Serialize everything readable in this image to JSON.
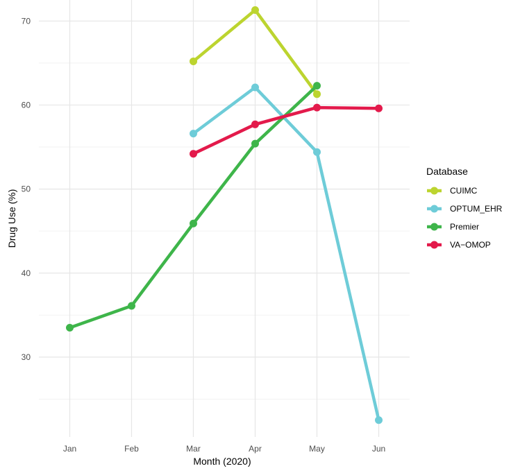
{
  "chart_data": {
    "type": "line",
    "xlabel": "Month (2020)",
    "ylabel": "Drug Use (%)",
    "categories": [
      "Jan",
      "Feb",
      "Mar",
      "Apr",
      "May",
      "Jun"
    ],
    "ylim": [
      20.5,
      72.5
    ],
    "y_ticks": [
      30,
      40,
      50,
      60,
      70
    ],
    "grid": true,
    "legend": {
      "title": "Database",
      "position": "right"
    },
    "series": [
      {
        "name": "CUIMC",
        "color": "#BCD42F",
        "values": [
          null,
          null,
          65.2,
          71.3,
          61.3,
          null
        ]
      },
      {
        "name": "OPTUM_EHR",
        "color": "#6ECCD8",
        "values": [
          null,
          null,
          56.6,
          62.1,
          54.4,
          22.5
        ]
      },
      {
        "name": "Premier",
        "color": "#3EB54A",
        "values": [
          33.5,
          36.1,
          45.9,
          55.4,
          62.3,
          null
        ]
      },
      {
        "name": "VA−OMOP",
        "color": "#E31A4B",
        "values": [
          null,
          null,
          54.2,
          57.7,
          59.7,
          59.6
        ]
      }
    ]
  }
}
